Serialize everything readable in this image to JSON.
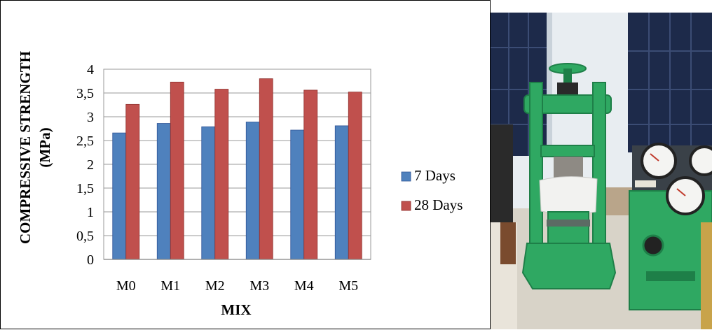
{
  "chart_data": {
    "type": "bar",
    "categories": [
      "M0",
      "M1",
      "M2",
      "M3",
      "M4",
      "M5"
    ],
    "series": [
      {
        "name": "7 Days",
        "values": [
          2.66,
          2.86,
          2.79,
          2.89,
          2.72,
          2.81
        ],
        "color": "#4F81BD",
        "edge": "#2F5597"
      },
      {
        "name": "28 Days",
        "values": [
          3.26,
          3.73,
          3.58,
          3.8,
          3.56,
          3.52
        ],
        "color": "#C0504D",
        "edge": "#8E2F2C"
      }
    ],
    "xlabel": "MIX",
    "ylabel_lines": [
      "COMPRESSIVE STRENGTH",
      "(MPa)"
    ],
    "ylim": [
      0,
      4
    ],
    "yticks": [
      0,
      0.5,
      1,
      1.5,
      2,
      2.5,
      3,
      3.5,
      4
    ],
    "ytick_labels": [
      "0",
      "0,5",
      "1",
      "1,5",
      "2",
      "2,5",
      "3",
      "3,5",
      "4"
    ],
    "grid": true,
    "legend_position": "right"
  },
  "photo": {
    "subject": "compression-testing-machine",
    "colors": {
      "machine": "#2FA862",
      "machine_dark": "#1E7F48",
      "wall": "#E9EEF2",
      "window": "#1D2A4A",
      "floor": "#D9D5CC"
    }
  }
}
